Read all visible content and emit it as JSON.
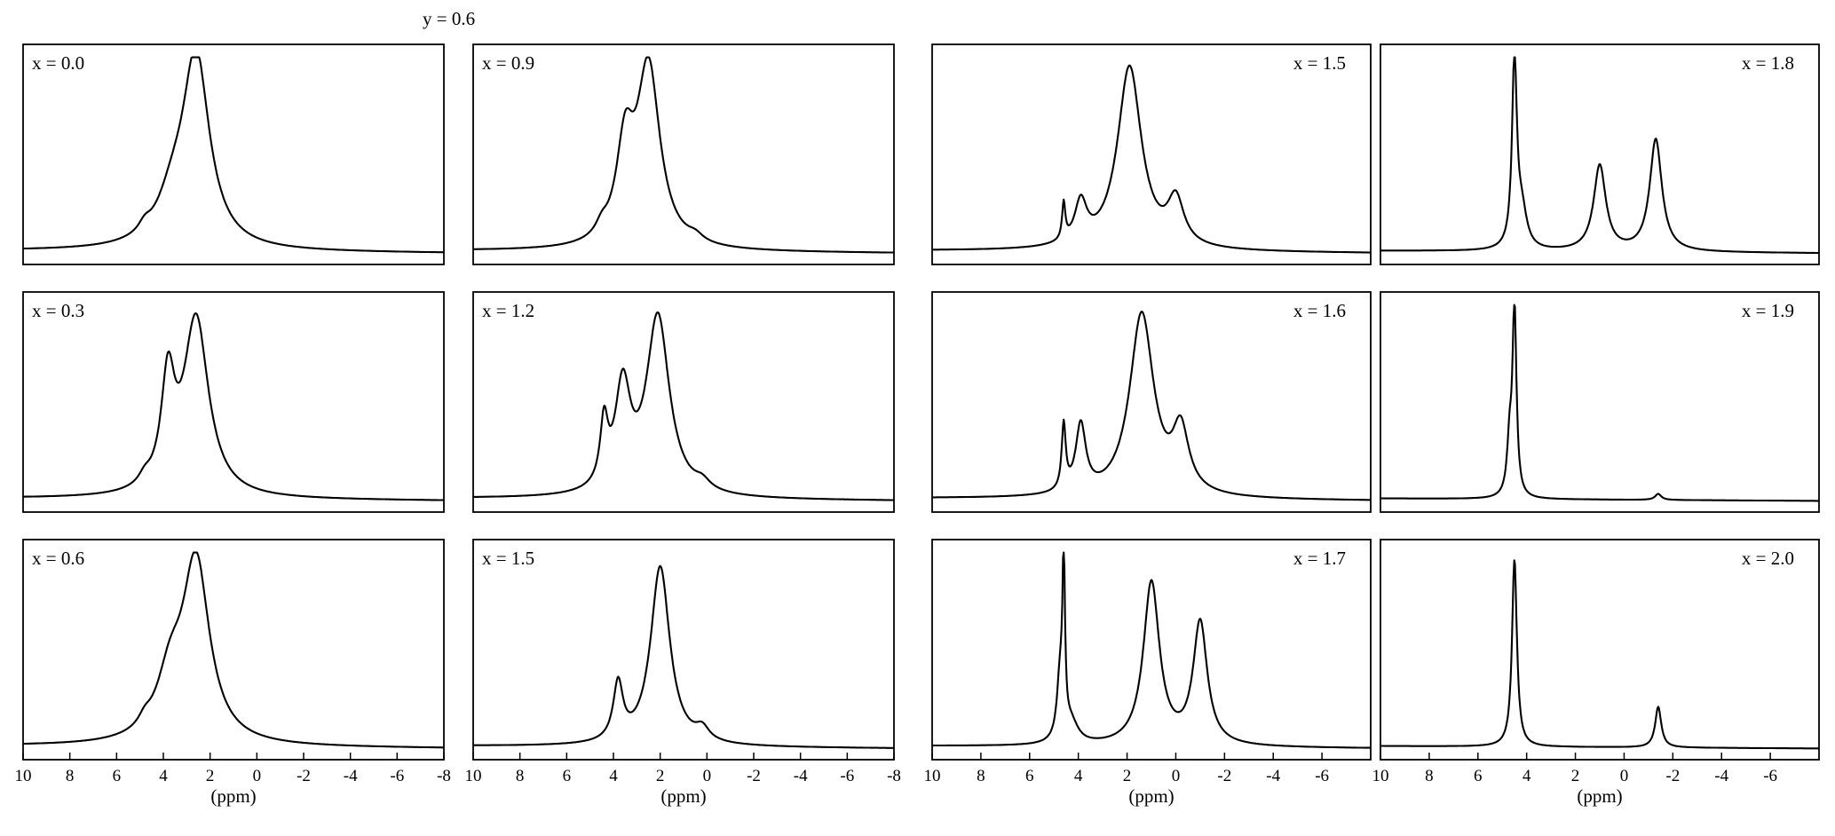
{
  "figure": {
    "heading": "y = 0.6",
    "xlabel": "(ppm)"
  },
  "chart_data": [
    {
      "type": "line",
      "column": 0,
      "row": 0,
      "label": "x = 0.0",
      "label_pos": "top-left",
      "xlabel": "",
      "xlim": [
        10,
        -8
      ],
      "baseline": 0.02,
      "peaks": [
        {
          "center": 2.6,
          "height": 0.93,
          "width": 0.7
        },
        {
          "center": 3.6,
          "height": 0.18,
          "width": 0.8
        },
        {
          "center": 4.8,
          "height": 0.04,
          "width": 0.3
        }
      ],
      "ticks": [],
      "series": [
        {
          "x": [
            10,
            -8
          ]
        }
      ]
    },
    {
      "type": "line",
      "column": 0,
      "row": 1,
      "label": "x = 0.3",
      "label_pos": "top-left",
      "xlabel": "",
      "xlim": [
        10,
        -8
      ],
      "baseline": 0.02,
      "peaks": [
        {
          "center": 2.6,
          "height": 0.87,
          "width": 0.65
        },
        {
          "center": 3.8,
          "height": 0.52,
          "width": 0.35
        },
        {
          "center": 4.8,
          "height": 0.04,
          "width": 0.3
        }
      ],
      "ticks": []
    },
    {
      "type": "line",
      "column": 0,
      "row": 2,
      "label": "x = 0.6",
      "label_pos": "top-left",
      "xlabel": "(ppm)",
      "xlim": [
        10,
        -8
      ],
      "baseline": 0.02,
      "peaks": [
        {
          "center": 2.6,
          "height": 0.88,
          "width": 0.7
        },
        {
          "center": 3.7,
          "height": 0.28,
          "width": 0.7
        },
        {
          "center": 4.8,
          "height": 0.04,
          "width": 0.3
        }
      ],
      "ticks": [
        10,
        8,
        6,
        4,
        2,
        0,
        -2,
        -4,
        -6,
        -8
      ]
    },
    {
      "type": "line",
      "column": 1,
      "row": 0,
      "label": "x = 0.9",
      "label_pos": "top-left",
      "xlabel": "",
      "xlim": [
        10,
        -8
      ],
      "baseline": 0.02,
      "peaks": [
        {
          "center": 2.5,
          "height": 0.88,
          "width": 0.6
        },
        {
          "center": 3.5,
          "height": 0.45,
          "width": 0.45
        },
        {
          "center": 4.5,
          "height": 0.05,
          "width": 0.3
        },
        {
          "center": 0.5,
          "height": 0.03,
          "width": 0.4
        }
      ],
      "ticks": []
    },
    {
      "type": "line",
      "column": 1,
      "row": 1,
      "label": "x = 1.2",
      "label_pos": "top-left",
      "xlabel": "",
      "xlim": [
        10,
        -8
      ],
      "baseline": 0.02,
      "peaks": [
        {
          "center": 2.1,
          "height": 0.88,
          "width": 0.6
        },
        {
          "center": 3.6,
          "height": 0.5,
          "width": 0.4
        },
        {
          "center": 4.4,
          "height": 0.3,
          "width": 0.2
        },
        {
          "center": 0.2,
          "height": 0.04,
          "width": 0.4
        }
      ],
      "ticks": []
    },
    {
      "type": "line",
      "column": 1,
      "row": 2,
      "label": "x = 1.5",
      "label_pos": "top-left",
      "xlabel": "(ppm)",
      "xlim": [
        10,
        -8
      ],
      "baseline": 0.02,
      "peaks": [
        {
          "center": 2.0,
          "height": 0.88,
          "width": 0.5
        },
        {
          "center": 3.8,
          "height": 0.28,
          "width": 0.25
        },
        {
          "center": 0.2,
          "height": 0.06,
          "width": 0.35
        }
      ],
      "ticks": [
        10,
        8,
        6,
        4,
        2,
        0,
        -2,
        -4,
        -6,
        -8
      ]
    },
    {
      "type": "line",
      "column": 2,
      "row": 0,
      "label": "x = 1.5",
      "label_pos": "top-right",
      "xlabel": "",
      "xlim": [
        10,
        -8
      ],
      "baseline": 0.02,
      "peaks": [
        {
          "center": 1.9,
          "height": 0.9,
          "width": 0.6
        },
        {
          "center": 4.6,
          "height": 0.18,
          "width": 0.08
        },
        {
          "center": 3.9,
          "height": 0.2,
          "width": 0.3
        },
        {
          "center": 0.0,
          "height": 0.22,
          "width": 0.4
        }
      ],
      "ticks": []
    },
    {
      "type": "line",
      "column": 2,
      "row": 1,
      "label": "x = 1.6",
      "label_pos": "top-right",
      "xlabel": "",
      "xlim": [
        10,
        -8
      ],
      "baseline": 0.02,
      "peaks": [
        {
          "center": 1.4,
          "height": 0.9,
          "width": 0.6
        },
        {
          "center": 4.6,
          "height": 0.32,
          "width": 0.1
        },
        {
          "center": 3.9,
          "height": 0.33,
          "width": 0.25
        },
        {
          "center": -0.2,
          "height": 0.3,
          "width": 0.4
        }
      ],
      "ticks": []
    },
    {
      "type": "line",
      "column": 2,
      "row": 2,
      "label": "x = 1.7",
      "label_pos": "top-right",
      "xlabel": "(ppm)",
      "xlim": [
        10,
        -8
      ],
      "baseline": 0.02,
      "peaks": [
        {
          "center": 4.6,
          "height": 0.85,
          "width": 0.06
        },
        {
          "center": 4.75,
          "height": 0.3,
          "width": 0.15
        },
        {
          "center": 4.3,
          "height": 0.1,
          "width": 0.35
        },
        {
          "center": 1.0,
          "height": 0.8,
          "width": 0.4
        },
        {
          "center": -1.0,
          "height": 0.6,
          "width": 0.35
        }
      ],
      "ticks": [
        10,
        8,
        6,
        4,
        2,
        0,
        -2,
        -4,
        -6
      ]
    },
    {
      "type": "line",
      "column": 3,
      "row": 0,
      "label": "x = 1.8",
      "label_pos": "top-right",
      "xlabel": "",
      "xlim": [
        10,
        -8
      ],
      "baseline": 0.02,
      "peaks": [
        {
          "center": 4.5,
          "height": 0.92,
          "width": 0.12
        },
        {
          "center": 4.2,
          "height": 0.18,
          "width": 0.25
        },
        {
          "center": 1.0,
          "height": 0.42,
          "width": 0.3
        },
        {
          "center": -1.3,
          "height": 0.55,
          "width": 0.3
        }
      ],
      "ticks": []
    },
    {
      "type": "line",
      "column": 3,
      "row": 1,
      "label": "x = 1.9",
      "label_pos": "top-right",
      "xlabel": "",
      "xlim": [
        10,
        -8
      ],
      "baseline": 0.02,
      "peaks": [
        {
          "center": 4.5,
          "height": 0.92,
          "width": 0.1
        },
        {
          "center": 4.7,
          "height": 0.25,
          "width": 0.12
        },
        {
          "center": -1.4,
          "height": 0.03,
          "width": 0.15
        }
      ],
      "ticks": []
    },
    {
      "type": "line",
      "column": 3,
      "row": 2,
      "label": "x = 2.0",
      "label_pos": "top-right",
      "xlabel": "(ppm)",
      "xlim": [
        10,
        -8
      ],
      "baseline": 0.02,
      "peaks": [
        {
          "center": 4.5,
          "height": 0.92,
          "width": 0.12
        },
        {
          "center": -1.4,
          "height": 0.2,
          "width": 0.15
        }
      ],
      "ticks": [
        10,
        8,
        6,
        4,
        2,
        0,
        -2,
        -4,
        -6
      ]
    }
  ]
}
